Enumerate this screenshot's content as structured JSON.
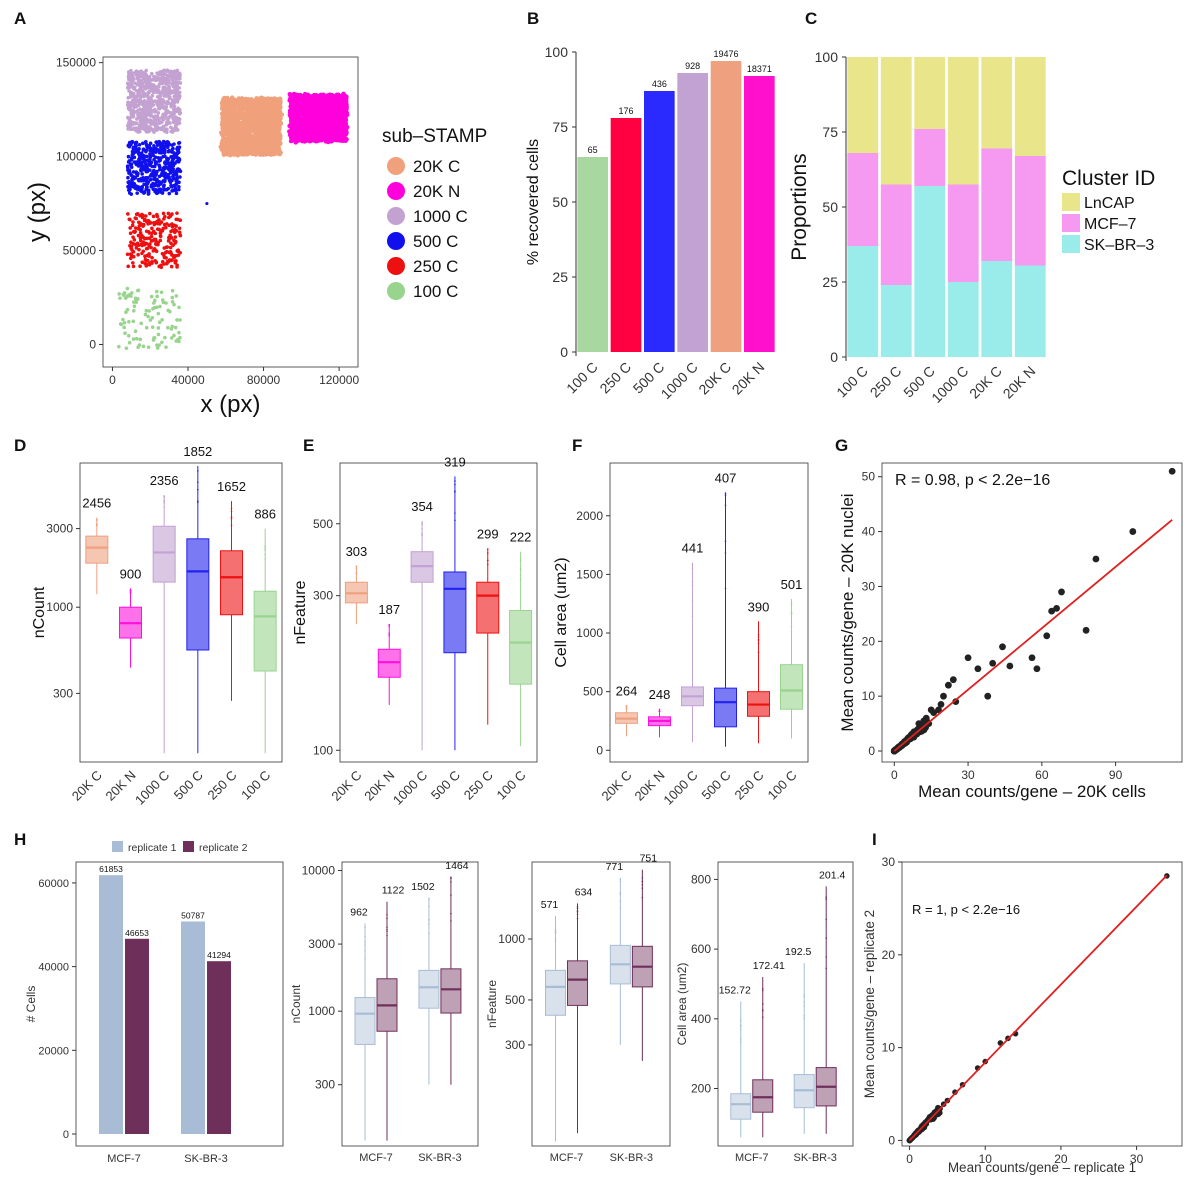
{
  "panel_labels": [
    "A",
    "B",
    "C",
    "D",
    "E",
    "F",
    "G",
    "H",
    "I"
  ],
  "chart_data": [
    {
      "id": "A",
      "type": "scatter",
      "xlabel": "x (px)",
      "ylabel": "y (px)",
      "xticks": [
        "0",
        "40000",
        "80000",
        "120000"
      ],
      "yticks": [
        "0",
        "50000",
        "100000",
        "150000"
      ],
      "xlim": [
        -5000,
        130000
      ],
      "ylim": [
        -12000,
        153000
      ],
      "legend_title": "sub–STAMP",
      "legend": [
        {
          "name": "20K C",
          "color": "#F0A07A"
        },
        {
          "name": "20K N",
          "color": "#FF00DD"
        },
        {
          "name": "1000 C",
          "color": "#C3A2D2"
        },
        {
          "name": "500 C",
          "color": "#1010EE"
        },
        {
          "name": "250 C",
          "color": "#EE1010"
        },
        {
          "name": "100 C",
          "color": "#99D48F"
        }
      ],
      "regions": [
        {
          "name": "1000 C",
          "x": [
            8000,
            36000
          ],
          "y": [
            113000,
            146000
          ],
          "n": 700,
          "size": 1.8
        },
        {
          "name": "500 C",
          "x": [
            8000,
            36000
          ],
          "y": [
            80000,
            108000
          ],
          "n": 450,
          "size": 1.8
        },
        {
          "name": "250 C",
          "x": [
            8000,
            36000
          ],
          "y": [
            41000,
            70000
          ],
          "n": 230,
          "size": 1.8
        },
        {
          "name": "100 C",
          "x": [
            3000,
            36000
          ],
          "y": [
            -2000,
            30000
          ],
          "n": 100,
          "size": 1.8
        },
        {
          "name": "20K C",
          "x": [
            58000,
            89000
          ],
          "y": [
            101000,
            131000
          ],
          "n": 1600,
          "size": 2.2
        },
        {
          "name": "20K N",
          "x": [
            94000,
            124000
          ],
          "y": [
            108000,
            133000
          ],
          "n": 1600,
          "size": 2.2
        }
      ]
    },
    {
      "id": "B",
      "type": "bar",
      "ylabel": "% recovered cells",
      "categories": [
        "100 C",
        "250 C",
        "500 C",
        "1000 C",
        "20K C",
        "20K N"
      ],
      "values": [
        65,
        78,
        87,
        93,
        97,
        92
      ],
      "labels": [
        "65",
        "176",
        "436",
        "928",
        "19476",
        "18371"
      ],
      "colors": [
        "#A8D8A0",
        "#FF0040",
        "#2A2AFF",
        "#C2A2D2",
        "#EFA07E",
        "#FF10CC"
      ],
      "ylim": [
        0,
        100
      ],
      "yticks": [
        "0",
        "25",
        "50",
        "75",
        "100"
      ]
    },
    {
      "id": "C",
      "type": "bar",
      "stacked": true,
      "ylabel": "Proportions",
      "categories": [
        "100 C",
        "250 C",
        "500 C",
        "1000 C",
        "20K C",
        "20K N"
      ],
      "series": [
        {
          "name": "SK–BR–3",
          "color": "#99ECEA",
          "values": [
            37,
            24,
            57,
            25,
            32,
            30.5
          ]
        },
        {
          "name": "MCF–7",
          "color": "#F59AF0",
          "values": [
            31,
            33.5,
            19,
            32.5,
            37.5,
            36.5
          ]
        },
        {
          "name": "LnCAP",
          "color": "#E8E58A",
          "values": [
            32,
            42.5,
            24,
            42.5,
            30.5,
            33
          ]
        }
      ],
      "legend_title": "Cluster ID",
      "legend_order": [
        "LnCAP",
        "MCF–7",
        "SK–BR–3"
      ],
      "ylim": [
        0,
        100
      ],
      "yticks": [
        "0",
        "25",
        "50",
        "75",
        "100"
      ]
    },
    {
      "id": "D",
      "type": "box",
      "log": true,
      "ylabel": "nCount",
      "categories": [
        "20K C",
        "20K N",
        "1000 C",
        "500 C",
        "250 C",
        "100 C"
      ],
      "colors": [
        "#EFA07E",
        "#FF10DD",
        "#C2A2D2",
        "#2222EE",
        "#EE1111",
        "#99D48F"
      ],
      "yticks": [
        {
          "v": 300,
          "label": "300"
        },
        {
          "v": 1000,
          "label": "1000"
        },
        {
          "v": 3000,
          "label": "3000"
        }
      ],
      "ylim": [
        115,
        7500
      ],
      "boxes": [
        {
          "min": 1200,
          "q1": 1850,
          "med": 2300,
          "q3": 2700,
          "max": 3500,
          "label": "2456"
        },
        {
          "min": 430,
          "q1": 650,
          "med": 800,
          "q3": 1000,
          "max": 1300,
          "label": "900"
        },
        {
          "min": 130,
          "q1": 1420,
          "med": 2150,
          "q3": 3100,
          "max": 4800,
          "label": "2356"
        },
        {
          "min": 130,
          "q1": 550,
          "med": 1650,
          "q3": 2600,
          "max": 7200,
          "label": "1852"
        },
        {
          "min": 270,
          "q1": 900,
          "med": 1520,
          "q3": 2200,
          "max": 4400,
          "label": "1652"
        },
        {
          "min": 130,
          "q1": 410,
          "med": 880,
          "q3": 1250,
          "max": 3000,
          "label": "886"
        }
      ]
    },
    {
      "id": "E",
      "type": "box",
      "log": true,
      "ylabel": "nFeature",
      "categories": [
        "20K C",
        "20K N",
        "1000 C",
        "500 C",
        "250 C",
        "100 C"
      ],
      "colors": [
        "#EFA07E",
        "#FF10DD",
        "#C2A2D2",
        "#2222EE",
        "#EE1111",
        "#99D48F"
      ],
      "yticks": [
        {
          "v": 100,
          "label": "100"
        },
        {
          "v": 300,
          "label": "300"
        },
        {
          "v": 500,
          "label": "500"
        }
      ],
      "ylim": [
        92,
        770
      ],
      "boxes": [
        {
          "min": 245,
          "q1": 285,
          "med": 305,
          "q3": 330,
          "max": 370,
          "label": "303"
        },
        {
          "min": 138,
          "q1": 168,
          "med": 187,
          "q3": 205,
          "max": 245,
          "label": "187"
        },
        {
          "min": 100,
          "q1": 330,
          "med": 370,
          "q3": 410,
          "max": 510,
          "label": "354"
        },
        {
          "min": 100,
          "q1": 200,
          "med": 315,
          "q3": 355,
          "max": 700,
          "label": "319"
        },
        {
          "min": 120,
          "q1": 230,
          "med": 300,
          "q3": 330,
          "max": 420,
          "label": "299"
        },
        {
          "min": 103,
          "q1": 160,
          "med": 215,
          "q3": 270,
          "max": 410,
          "label": "222"
        }
      ]
    },
    {
      "id": "F",
      "type": "box",
      "ylabel": "Cell area (um2)",
      "categories": [
        "20K C",
        "20K N",
        "1000 C",
        "500 C",
        "250 C",
        "100 C"
      ],
      "colors": [
        "#EFA07E",
        "#FF10DD",
        "#C2A2D2",
        "#2222EE",
        "#EE1111",
        "#99D48F"
      ],
      "yticks": [
        "0",
        "500",
        "1000",
        "1500",
        "2000"
      ],
      "ylim": [
        -100,
        2450
      ],
      "boxes": [
        {
          "min": 120,
          "q1": 230,
          "med": 270,
          "q3": 320,
          "max": 380,
          "label": "264"
        },
        {
          "min": 110,
          "q1": 210,
          "med": 250,
          "q3": 285,
          "max": 350,
          "label": "248"
        },
        {
          "min": 70,
          "q1": 380,
          "med": 460,
          "q3": 540,
          "max": 1600,
          "label": "441"
        },
        {
          "min": 30,
          "q1": 200,
          "med": 410,
          "q3": 530,
          "max": 2200,
          "label": "407"
        },
        {
          "min": 60,
          "q1": 290,
          "med": 390,
          "q3": 500,
          "max": 1100,
          "label": "390"
        },
        {
          "min": 100,
          "q1": 350,
          "med": 510,
          "q3": 730,
          "max": 1290,
          "label": "501"
        }
      ]
    },
    {
      "id": "G",
      "type": "scatter",
      "xlabel": "Mean counts/gene – 20K cells",
      "ylabel": "Mean counts/gene – 20K nuclei",
      "annotation": "R = 0.98, p < 2.2e−16",
      "xticks": [
        "0",
        "30",
        "60",
        "90"
      ],
      "yticks": [
        "0",
        "10",
        "20",
        "30",
        "40",
        "50"
      ],
      "xlim": [
        -5,
        117
      ],
      "ylim": [
        -2,
        52.5
      ],
      "fit": {
        "slope": 0.373,
        "intercept": 0,
        "x": [
          0,
          113
        ]
      },
      "points": [
        [
          113,
          51
        ],
        [
          97,
          40
        ],
        [
          82,
          35
        ],
        [
          78,
          22
        ],
        [
          68,
          29
        ],
        [
          66,
          26
        ],
        [
          64,
          25.5
        ],
        [
          62,
          21
        ],
        [
          56,
          17
        ],
        [
          58,
          15
        ],
        [
          47,
          15.5
        ],
        [
          44,
          19
        ],
        [
          40,
          16
        ],
        [
          38,
          10
        ],
        [
          34,
          15
        ],
        [
          30,
          17
        ],
        [
          25,
          9
        ],
        [
          24,
          13
        ],
        [
          22,
          12
        ],
        [
          20,
          10
        ],
        [
          19,
          8.5
        ],
        [
          18,
          7.5
        ],
        [
          16,
          7
        ],
        [
          15,
          7.5
        ],
        [
          14,
          5
        ],
        [
          13,
          6
        ],
        [
          12,
          5.5
        ],
        [
          11,
          4
        ],
        [
          10,
          5
        ],
        [
          9,
          3.5
        ],
        [
          8,
          3.5
        ],
        [
          7,
          3
        ],
        [
          6,
          2.5
        ],
        [
          5,
          2
        ],
        [
          4,
          1.5
        ],
        [
          3,
          1.2
        ],
        [
          2,
          0.8
        ],
        [
          1,
          0.4
        ],
        [
          0.5,
          0.2
        ],
        [
          0,
          0
        ]
      ]
    },
    {
      "id": "H1",
      "type": "bar",
      "ylabel": "# Cells",
      "categories": [
        "MCF-7",
        "SK-BR-3"
      ],
      "series": [
        {
          "name": "replicate 1",
          "color": "#A8BDD5",
          "values": [
            61853,
            50787
          ]
        },
        {
          "name": "replicate 2",
          "color": "#6E2F5A",
          "values": [
            46653,
            41294
          ]
        }
      ],
      "ylim": [
        0,
        65000
      ],
      "yticks": [
        "0",
        "20000",
        "40000",
        "60000"
      ]
    },
    {
      "id": "H2",
      "type": "box",
      "log": true,
      "ylabel": "nCount",
      "categories": [
        "MCF-7",
        "SK-BR-3"
      ],
      "yticks": [
        {
          "v": 300,
          "label": "300"
        },
        {
          "v": 1000,
          "label": "1000"
        },
        {
          "v": 3000,
          "label": "3000"
        },
        {
          "v": 10000,
          "label": "10000"
        }
      ],
      "ylim": [
        110,
        11500
      ],
      "boxes": [
        {
          "min": 120,
          "q1": 580,
          "med": 960,
          "q3": 1250,
          "max": 4200,
          "label": "962",
          "rep": 0
        },
        {
          "min": 120,
          "q1": 720,
          "med": 1100,
          "q3": 1700,
          "max": 6000,
          "label": "1122",
          "rep": 1
        },
        {
          "min": 300,
          "q1": 1050,
          "med": 1480,
          "q3": 1950,
          "max": 6400,
          "label": "1502",
          "rep": 0
        },
        {
          "min": 300,
          "q1": 970,
          "med": 1430,
          "q3": 2000,
          "max": 9000,
          "label": "1464",
          "rep": 1
        }
      ]
    },
    {
      "id": "H3",
      "type": "box",
      "log": true,
      "ylabel": "nFeature",
      "categories": [
        "MCF-7",
        "SK-BR-3"
      ],
      "yticks": [
        {
          "v": 300,
          "label": "300"
        },
        {
          "v": 500,
          "label": "500"
        },
        {
          "v": 1000,
          "label": "1000"
        }
      ],
      "ylim": [
        95,
        2400
      ],
      "boxes": [
        {
          "min": 100,
          "q1": 420,
          "med": 580,
          "q3": 700,
          "max": 1300,
          "label": "571",
          "rep": 0
        },
        {
          "min": 110,
          "q1": 470,
          "med": 630,
          "q3": 780,
          "max": 1500,
          "label": "634",
          "rep": 1
        },
        {
          "min": 300,
          "q1": 600,
          "med": 750,
          "q3": 930,
          "max": 2000,
          "label": "771",
          "rep": 0
        },
        {
          "min": 250,
          "q1": 580,
          "med": 730,
          "q3": 920,
          "max": 2200,
          "label": "751",
          "rep": 1
        }
      ]
    },
    {
      "id": "H4",
      "type": "box",
      "ylabel": "Cell area (um2)",
      "categories": [
        "MCF-7",
        "SK-BR-3"
      ],
      "yticks": [
        "200",
        "400",
        "600",
        "800"
      ],
      "ylim": [
        35,
        850
      ],
      "boxes": [
        {
          "min": 60,
          "q1": 112,
          "med": 155,
          "q3": 185,
          "max": 450,
          "label": "152.72",
          "rep": 0
        },
        {
          "min": 60,
          "q1": 132,
          "med": 175,
          "q3": 225,
          "max": 520,
          "label": "172.41",
          "rep": 1
        },
        {
          "min": 70,
          "q1": 145,
          "med": 195,
          "q3": 240,
          "max": 560,
          "label": "192.5",
          "rep": 0
        },
        {
          "min": 70,
          "q1": 150,
          "med": 205,
          "q3": 260,
          "max": 780,
          "label": "201.4",
          "rep": 1
        }
      ]
    },
    {
      "id": "I",
      "type": "scatter",
      "xlabel": "Mean counts/gene – replicate 1",
      "ylabel": "Mean counts/gene – replicate 2",
      "annotation": "R = 1, p < 2.2e−16",
      "xticks": [
        "0",
        "10",
        "20",
        "30"
      ],
      "yticks": [
        "0",
        "10",
        "20",
        "30"
      ],
      "xlim": [
        -1,
        36
      ],
      "ylim": [
        -0.6,
        30
      ],
      "fit": {
        "slope": 0.84,
        "intercept": 0,
        "x": [
          0,
          34
        ]
      },
      "points": [
        [
          34,
          28.5
        ],
        [
          14,
          11.5
        ],
        [
          13,
          11
        ],
        [
          12,
          10.5
        ],
        [
          10,
          8.5
        ],
        [
          9,
          7.8
        ],
        [
          7,
          6
        ],
        [
          6,
          5.2
        ],
        [
          5,
          4.3
        ],
        [
          4.5,
          3.9
        ],
        [
          4,
          3.4
        ],
        [
          3.5,
          3
        ],
        [
          3,
          2.6
        ],
        [
          2.5,
          2.2
        ],
        [
          2,
          1.7
        ],
        [
          1.5,
          1.3
        ],
        [
          1,
          0.9
        ],
        [
          0.5,
          0.4
        ],
        [
          0,
          0
        ]
      ]
    }
  ]
}
